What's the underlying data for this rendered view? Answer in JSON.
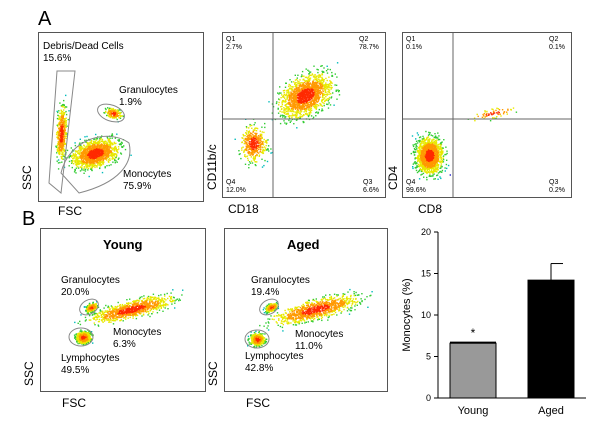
{
  "panel_a": {
    "label": "A",
    "plot1": {
      "xlabel": "FSC",
      "ylabel": "SSC",
      "gates": [
        {
          "name": "Debris/Dead Cells",
          "pct": "15.6%"
        },
        {
          "name": "Granulocytes",
          "pct": "1.9%"
        },
        {
          "name": "Monocytes",
          "pct": "75.9%"
        }
      ]
    },
    "plot2": {
      "xlabel": "CD18",
      "ylabel": "CD11b/c",
      "quadrants": [
        {
          "q": "Q1",
          "pct": "2.7%"
        },
        {
          "q": "Q2",
          "pct": "78.7%"
        },
        {
          "q": "Q3",
          "pct": "6.6%"
        },
        {
          "q": "Q4",
          "pct": "12.0%"
        }
      ]
    },
    "plot3": {
      "xlabel": "CD8",
      "ylabel": "CD4",
      "quadrants": [
        {
          "q": "Q1",
          "pct": "0.1%"
        },
        {
          "q": "Q2",
          "pct": "0.1%"
        },
        {
          "q": "Q3",
          "pct": "0.2%"
        },
        {
          "q": "Q4",
          "pct": "99.6%"
        }
      ]
    }
  },
  "panel_b": {
    "label": "B",
    "young": {
      "title": "Young",
      "xlabel": "FSC",
      "ylabel": "SSC",
      "gates": [
        {
          "name": "Granulocytes",
          "pct": "20.0%"
        },
        {
          "name": "Monocytes",
          "pct": "6.3%"
        },
        {
          "name": "Lymphocytes",
          "pct": "49.5%"
        }
      ]
    },
    "aged": {
      "title": "Aged",
      "xlabel": "FSC",
      "ylabel": "SSC",
      "gates": [
        {
          "name": "Granulocytes",
          "pct": "19.4%"
        },
        {
          "name": "Monocytes",
          "pct": "11.0%"
        },
        {
          "name": "Lymphocytes",
          "pct": "42.8%"
        }
      ]
    }
  },
  "chart_data": {
    "type": "bar",
    "categories": [
      "Young",
      "Aged"
    ],
    "values": [
      6.6,
      14.2
    ],
    "errors": [
      0.1,
      2.0
    ],
    "ylabel": "Monocytes (%)",
    "ylim": [
      0,
      20
    ],
    "yticks": [
      "0",
      "5",
      "10",
      "15",
      "20"
    ],
    "significance": "*",
    "colors": [
      "#999999",
      "#000000"
    ]
  }
}
